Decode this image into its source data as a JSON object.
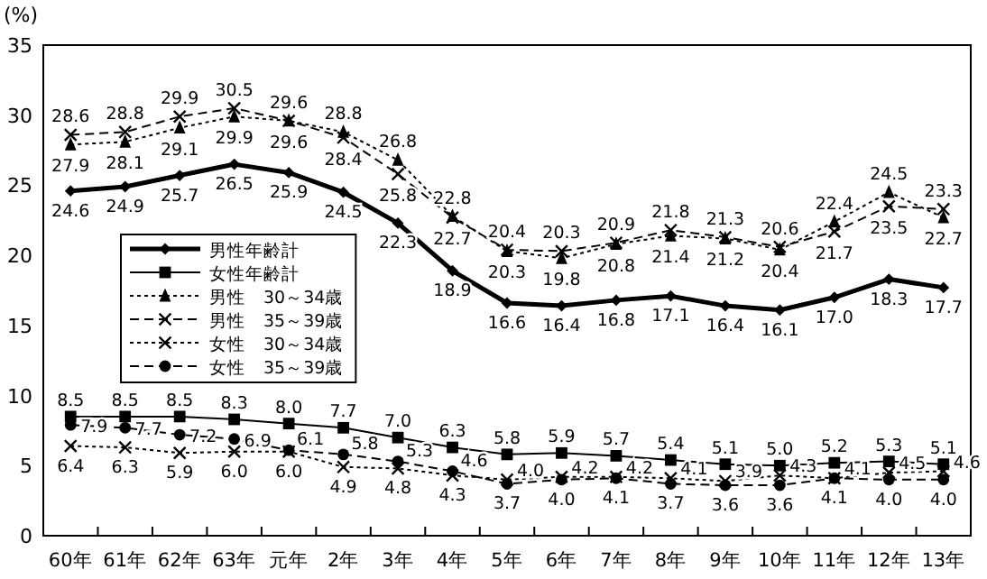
{
  "chart_data": {
    "type": "line",
    "ylabel": "(%)",
    "categories": [
      "60年",
      "61年",
      "62年",
      "63年",
      "元年",
      "2年",
      "3年",
      "4年",
      "5年",
      "6年",
      "7年",
      "8年",
      "9年",
      "10年",
      "11年",
      "12年",
      "13年"
    ],
    "ylim": [
      0,
      35
    ],
    "yticks": [
      0,
      5,
      10,
      15,
      20,
      25,
      30,
      35
    ],
    "grid": false,
    "legend": "left",
    "series": [
      {
        "name": "男性年齢計",
        "color": "#000000",
        "marker": "diamond",
        "line_style": "solid",
        "values": [
          24.6,
          24.9,
          25.7,
          26.5,
          25.9,
          24.5,
          22.3,
          18.9,
          16.6,
          16.4,
          16.8,
          17.1,
          16.4,
          16.1,
          17.0,
          18.3,
          17.7
        ],
        "value_labels": [
          "24.6",
          "24.9",
          "25.7",
          "26.5",
          "25.9",
          "24.5",
          "22.3",
          "18.9",
          "16.6",
          "16.4",
          "16.8",
          "17.1",
          "16.4",
          "16.1",
          "17.0",
          "18.3",
          "17.7"
        ]
      },
      {
        "name": "女性年齢計",
        "color": "#000000",
        "marker": "square",
        "line_style": "solid",
        "values": [
          8.5,
          8.5,
          8.5,
          8.3,
          8.0,
          7.7,
          7.0,
          6.3,
          5.8,
          5.9,
          5.7,
          5.4,
          5.1,
          5.0,
          5.2,
          5.3,
          5.1
        ],
        "value_labels": [
          "8.5",
          "8.5",
          "8.5",
          "8.3",
          "8.0",
          "7.7",
          "7.0",
          "6.3",
          "5.8",
          "5.9",
          "5.7",
          "5.4",
          "5.1",
          "5.0",
          "5.2",
          "5.3",
          "5.1"
        ]
      },
      {
        "name": "男性　30～34歳",
        "color": "#000000",
        "marker": "triangle",
        "line_style": "dotted",
        "values": [
          27.9,
          28.1,
          29.1,
          29.9,
          29.6,
          28.8,
          26.8,
          22.8,
          20.3,
          19.8,
          20.8,
          21.4,
          21.2,
          20.4,
          22.4,
          24.5,
          22.7
        ],
        "value_labels": [
          "27.9",
          "28.1",
          "29.1",
          "29.9",
          "29.6",
          "28.8",
          "26.8",
          "22.8",
          "20.3",
          "19.8",
          "20.8",
          "21.4",
          "21.2",
          "20.4",
          "22.4",
          "24.5",
          "22.7"
        ]
      },
      {
        "name": "男性　35～39歳",
        "color": "#000000",
        "marker": "cross",
        "line_style": "dashed",
        "values": [
          28.6,
          28.8,
          29.9,
          30.5,
          29.6,
          28.4,
          25.8,
          22.7,
          20.4,
          20.3,
          20.9,
          21.8,
          21.3,
          20.6,
          21.7,
          23.5,
          23.3
        ],
        "value_labels": [
          "28.6",
          "28.8",
          "29.9",
          "30.5",
          "29.6",
          "28.4",
          "25.8",
          "22.7",
          "20.4",
          "20.3",
          "20.9",
          "21.8",
          "21.3",
          "20.6",
          "21.7",
          "23.5",
          "23.3"
        ]
      },
      {
        "name": "女性　30～34歳",
        "color": "#000000",
        "marker": "cross",
        "line_style": "dotted",
        "values": [
          6.4,
          6.3,
          5.9,
          6.0,
          6.0,
          4.9,
          4.8,
          4.3,
          4.0,
          4.2,
          4.2,
          4.1,
          3.9,
          4.3,
          4.1,
          4.5,
          4.6
        ],
        "value_labels": [
          "6.4",
          "6.3",
          "5.9",
          "6.0",
          "6.0",
          "4.9",
          "4.8",
          "4.3",
          "4.0",
          "4.2",
          "4.2",
          "4.1",
          "3.9",
          "4.3",
          "4.1",
          "4.5",
          "4.6"
        ]
      },
      {
        "name": "女性　35～39歳",
        "color": "#000000",
        "marker": "circle",
        "line_style": "dashed",
        "values": [
          7.9,
          7.7,
          7.2,
          6.9,
          6.1,
          5.8,
          5.3,
          4.6,
          3.7,
          4.0,
          4.1,
          3.7,
          3.6,
          3.6,
          4.1,
          4.0,
          4.0
        ],
        "value_labels": [
          "7.9",
          "7.7",
          "7.2",
          "6.9",
          "6.1",
          "5.8",
          "5.3",
          "4.6",
          "3.7",
          "4.0",
          "4.1",
          "3.7",
          "3.6",
          "3.6",
          "4.1",
          "4.0",
          "4.0"
        ]
      }
    ]
  }
}
